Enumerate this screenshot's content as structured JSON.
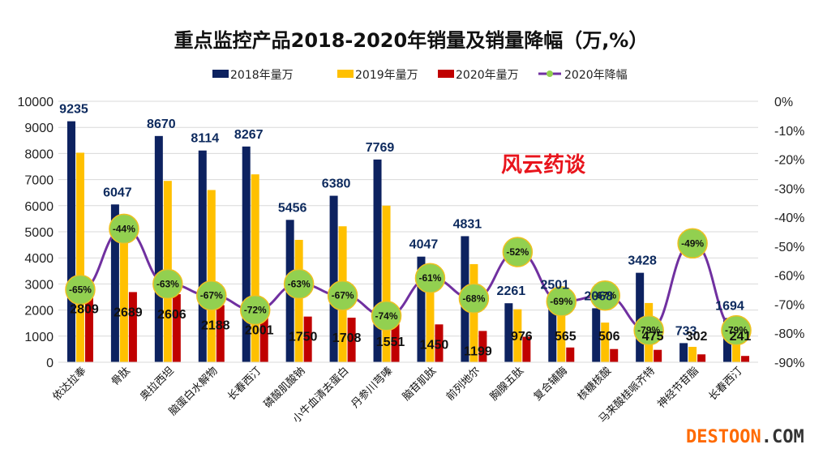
{
  "chart_data": {
    "type": "bar",
    "title": "重点监控产品2018-2020年销量及销量降幅（万,%）",
    "xlabel": "",
    "ylabel": "",
    "ylim": [
      0,
      10000
    ],
    "y2lim": [
      -90,
      0
    ],
    "yticks": [
      "0",
      "1000",
      "2000",
      "3000",
      "4000",
      "5000",
      "6000",
      "7000",
      "8000",
      "9000",
      "10000"
    ],
    "y2ticks": [
      "0%",
      "-10%",
      "-20%",
      "-30%",
      "-40%",
      "-50%",
      "-60%",
      "-70%",
      "-80%",
      "-90%"
    ],
    "grid": true,
    "legend_position": "top",
    "categories": [
      "依达拉奉",
      "骨肽",
      "奥拉西坦",
      "脑蛋白水解物",
      "长春西汀",
      "磷酸肌酸钠",
      "小牛血清去蛋白",
      "丹参川芎嗪",
      "脑苷肌肽",
      "前列地尔",
      "胸腺五肽",
      "复合辅酶",
      "核糖核酸",
      "马来酸桂哌齐特",
      "神经节苷脂",
      "长春西汀"
    ],
    "series": [
      {
        "name": "2018年量万",
        "type": "bar",
        "color": "#0d2260",
        "values": [
          9235,
          6047,
          8670,
          8114,
          8267,
          5456,
          6380,
          7769,
          4047,
          4831,
          2261,
          2501,
          2068,
          3428,
          733,
          1694
        ],
        "labeled": true
      },
      {
        "name": "2019年量万",
        "type": "bar",
        "color": "#ffc000",
        "values": [
          8030,
          4800,
          6950,
          6600,
          7200,
          4690,
          5210,
          6000,
          3720,
          3760,
          2030,
          1820,
          1520,
          2270,
          590,
          1150
        ],
        "labeled": false
      },
      {
        "name": "2020年量万",
        "type": "bar",
        "color": "#c00000",
        "values": [
          2809,
          2689,
          2606,
          2188,
          2001,
          1750,
          1708,
          1551,
          1450,
          1199,
          976,
          565,
          506,
          475,
          302,
          241
        ],
        "labeled": true
      },
      {
        "name": "2020年降幅",
        "type": "line",
        "axis": "right",
        "color": "#7030a0",
        "marker_color": "#92d050",
        "values": [
          -65,
          -44,
          -63,
          -67,
          -72,
          -63,
          -67,
          -74,
          -61,
          -68,
          -52,
          -69,
          -67,
          -79,
          -49,
          -79
        ],
        "labels": [
          "-65%",
          "-44%",
          "-63%",
          "-67%",
          "-72%",
          "-63%",
          "-67%",
          "-74%",
          "-61%",
          "-68%",
          "-52%",
          "-69%",
          "-67%",
          "-79%",
          "-49%",
          "-79%"
        ]
      }
    ]
  },
  "watermarks": {
    "brand": "风云药谈",
    "site_main": "DESTOON",
    "site_suffix": ".COM"
  }
}
